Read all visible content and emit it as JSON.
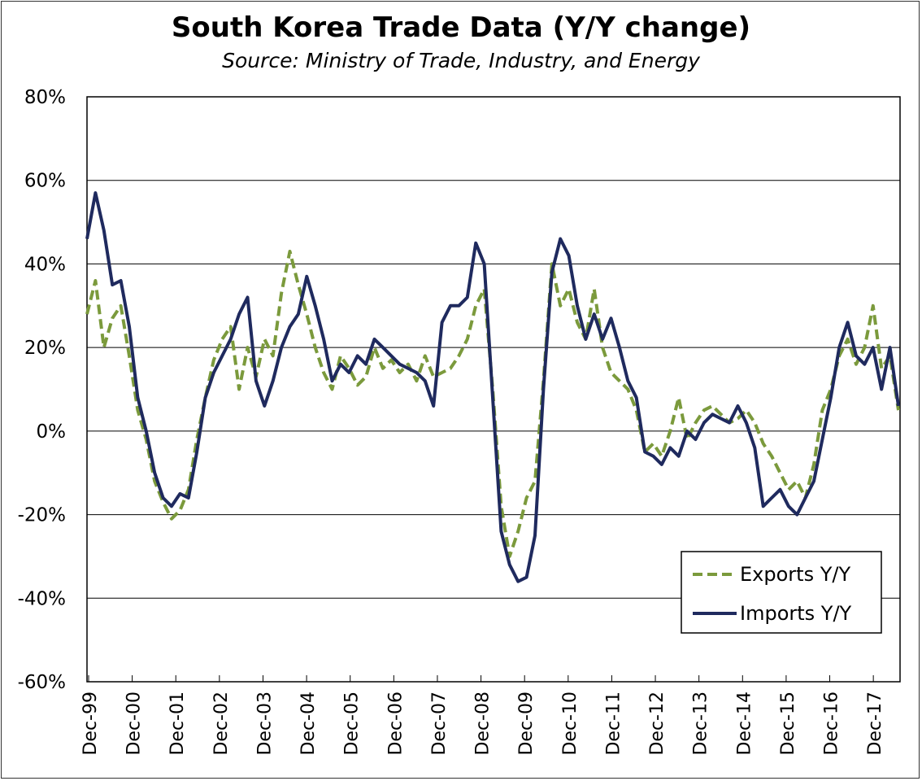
{
  "chart_data": {
    "type": "line",
    "title": "South Korea Trade Data (Y/Y change)",
    "subtitle": "Source: Ministry of Trade, Industry, and Energy",
    "xlabel": "",
    "ylabel": "",
    "ylim": [
      -60,
      80
    ],
    "yticks": [
      -60,
      -40,
      -20,
      0,
      20,
      40,
      60,
      80
    ],
    "ytick_labels": [
      "-60%",
      "-40%",
      "-20%",
      "0%",
      "20%",
      "40%",
      "60%",
      "80%"
    ],
    "xtick_labels": [
      "Dec-99",
      "Dec-00",
      "Dec-01",
      "Dec-02",
      "Dec-03",
      "Dec-04",
      "Dec-05",
      "Dec-06",
      "Dec-07",
      "Dec-08",
      "Dec-09",
      "Dec-10",
      "Dec-11",
      "Dec-12",
      "Dec-13",
      "Dec-14",
      "Dec-15",
      "Dec-16",
      "Dec-17"
    ],
    "x_range_months": [
      0,
      220
    ],
    "grid": "horizontal",
    "legend_position": "bottom-right",
    "series": [
      {
        "name": "Exports Y/Y",
        "color": "#7b9a3c",
        "style": "dashed",
        "points": [
          [
            0,
            28
          ],
          [
            3,
            36
          ],
          [
            6,
            20
          ],
          [
            9,
            27
          ],
          [
            12,
            30
          ],
          [
            15,
            18
          ],
          [
            18,
            5
          ],
          [
            21,
            -2
          ],
          [
            24,
            -12
          ],
          [
            27,
            -17
          ],
          [
            30,
            -21
          ],
          [
            33,
            -19
          ],
          [
            36,
            -14
          ],
          [
            39,
            -2
          ],
          [
            42,
            8
          ],
          [
            45,
            17
          ],
          [
            48,
            22
          ],
          [
            51,
            25
          ],
          [
            54,
            10
          ],
          [
            57,
            20
          ],
          [
            60,
            13
          ],
          [
            63,
            22
          ],
          [
            66,
            18
          ],
          [
            69,
            33
          ],
          [
            72,
            43
          ],
          [
            75,
            35
          ],
          [
            78,
            28
          ],
          [
            81,
            20
          ],
          [
            84,
            14
          ],
          [
            87,
            10
          ],
          [
            90,
            18
          ],
          [
            93,
            15
          ],
          [
            96,
            11
          ],
          [
            99,
            13
          ],
          [
            102,
            20
          ],
          [
            105,
            15
          ],
          [
            108,
            17
          ],
          [
            111,
            14
          ],
          [
            114,
            16
          ],
          [
            117,
            12
          ],
          [
            120,
            18
          ],
          [
            123,
            13
          ],
          [
            126,
            14
          ],
          [
            129,
            15
          ],
          [
            132,
            18
          ],
          [
            135,
            22
          ],
          [
            138,
            30
          ],
          [
            141,
            34
          ],
          [
            144,
            10
          ],
          [
            147,
            -18
          ],
          [
            150,
            -30
          ],
          [
            153,
            -24
          ],
          [
            156,
            -16
          ],
          [
            159,
            -12
          ],
          [
            162,
            12
          ],
          [
            165,
            40
          ],
          [
            168,
            30
          ],
          [
            171,
            34
          ],
          [
            174,
            26
          ],
          [
            177,
            22
          ],
          [
            180,
            34
          ],
          [
            183,
            20
          ],
          [
            186,
            14
          ],
          [
            189,
            12
          ],
          [
            192,
            10
          ],
          [
            195,
            5
          ],
          [
            198,
            -5
          ],
          [
            201,
            -3
          ],
          [
            204,
            -6
          ],
          [
            207,
            0
          ],
          [
            210,
            8
          ],
          [
            213,
            -2
          ],
          [
            216,
            2
          ],
          [
            219,
            5
          ],
          [
            222,
            6
          ],
          [
            225,
            4
          ],
          [
            228,
            2
          ],
          [
            231,
            3
          ],
          [
            234,
            5
          ],
          [
            237,
            2
          ],
          [
            240,
            -3
          ],
          [
            243,
            -6
          ],
          [
            246,
            -10
          ],
          [
            249,
            -14
          ],
          [
            252,
            -12
          ],
          [
            255,
            -16
          ],
          [
            258,
            -8
          ],
          [
            261,
            5
          ],
          [
            264,
            10
          ],
          [
            267,
            18
          ],
          [
            270,
            22
          ],
          [
            273,
            16
          ],
          [
            276,
            20
          ],
          [
            279,
            30
          ],
          [
            282,
            15
          ],
          [
            285,
            18
          ],
          [
            288,
            5
          ]
        ]
      },
      {
        "name": "Imports Y/Y",
        "color": "#1f2a5e",
        "style": "solid",
        "points": [
          [
            0,
            46
          ],
          [
            3,
            57
          ],
          [
            6,
            48
          ],
          [
            9,
            35
          ],
          [
            12,
            36
          ],
          [
            15,
            25
          ],
          [
            18,
            8
          ],
          [
            21,
            0
          ],
          [
            24,
            -10
          ],
          [
            27,
            -16
          ],
          [
            30,
            -18
          ],
          [
            33,
            -15
          ],
          [
            36,
            -16
          ],
          [
            39,
            -5
          ],
          [
            42,
            8
          ],
          [
            45,
            14
          ],
          [
            48,
            18
          ],
          [
            51,
            22
          ],
          [
            54,
            28
          ],
          [
            57,
            32
          ],
          [
            60,
            12
          ],
          [
            63,
            6
          ],
          [
            66,
            12
          ],
          [
            69,
            20
          ],
          [
            72,
            25
          ],
          [
            75,
            28
          ],
          [
            78,
            37
          ],
          [
            81,
            30
          ],
          [
            84,
            22
          ],
          [
            87,
            12
          ],
          [
            90,
            16
          ],
          [
            93,
            14
          ],
          [
            96,
            18
          ],
          [
            99,
            16
          ],
          [
            102,
            22
          ],
          [
            105,
            20
          ],
          [
            108,
            18
          ],
          [
            111,
            16
          ],
          [
            114,
            15
          ],
          [
            117,
            14
          ],
          [
            120,
            12
          ],
          [
            123,
            6
          ],
          [
            126,
            26
          ],
          [
            129,
            30
          ],
          [
            132,
            30
          ],
          [
            135,
            32
          ],
          [
            138,
            45
          ],
          [
            141,
            40
          ],
          [
            144,
            8
          ],
          [
            147,
            -24
          ],
          [
            150,
            -32
          ],
          [
            153,
            -36
          ],
          [
            156,
            -35
          ],
          [
            159,
            -25
          ],
          [
            162,
            10
          ],
          [
            165,
            38
          ],
          [
            168,
            46
          ],
          [
            171,
            42
          ],
          [
            174,
            30
          ],
          [
            177,
            22
          ],
          [
            180,
            28
          ],
          [
            183,
            22
          ],
          [
            186,
            27
          ],
          [
            189,
            20
          ],
          [
            192,
            12
          ],
          [
            195,
            8
          ],
          [
            198,
            -5
          ],
          [
            201,
            -6
          ],
          [
            204,
            -8
          ],
          [
            207,
            -4
          ],
          [
            210,
            -6
          ],
          [
            213,
            0
          ],
          [
            216,
            -2
          ],
          [
            219,
            2
          ],
          [
            222,
            4
          ],
          [
            225,
            3
          ],
          [
            228,
            2
          ],
          [
            231,
            6
          ],
          [
            234,
            2
          ],
          [
            237,
            -4
          ],
          [
            240,
            -18
          ],
          [
            243,
            -16
          ],
          [
            246,
            -14
          ],
          [
            249,
            -18
          ],
          [
            252,
            -20
          ],
          [
            255,
            -16
          ],
          [
            258,
            -12
          ],
          [
            261,
            -2
          ],
          [
            264,
            8
          ],
          [
            267,
            20
          ],
          [
            270,
            26
          ],
          [
            273,
            18
          ],
          [
            276,
            16
          ],
          [
            279,
            20
          ],
          [
            282,
            10
          ],
          [
            285,
            20
          ],
          [
            288,
            6
          ]
        ]
      }
    ]
  }
}
